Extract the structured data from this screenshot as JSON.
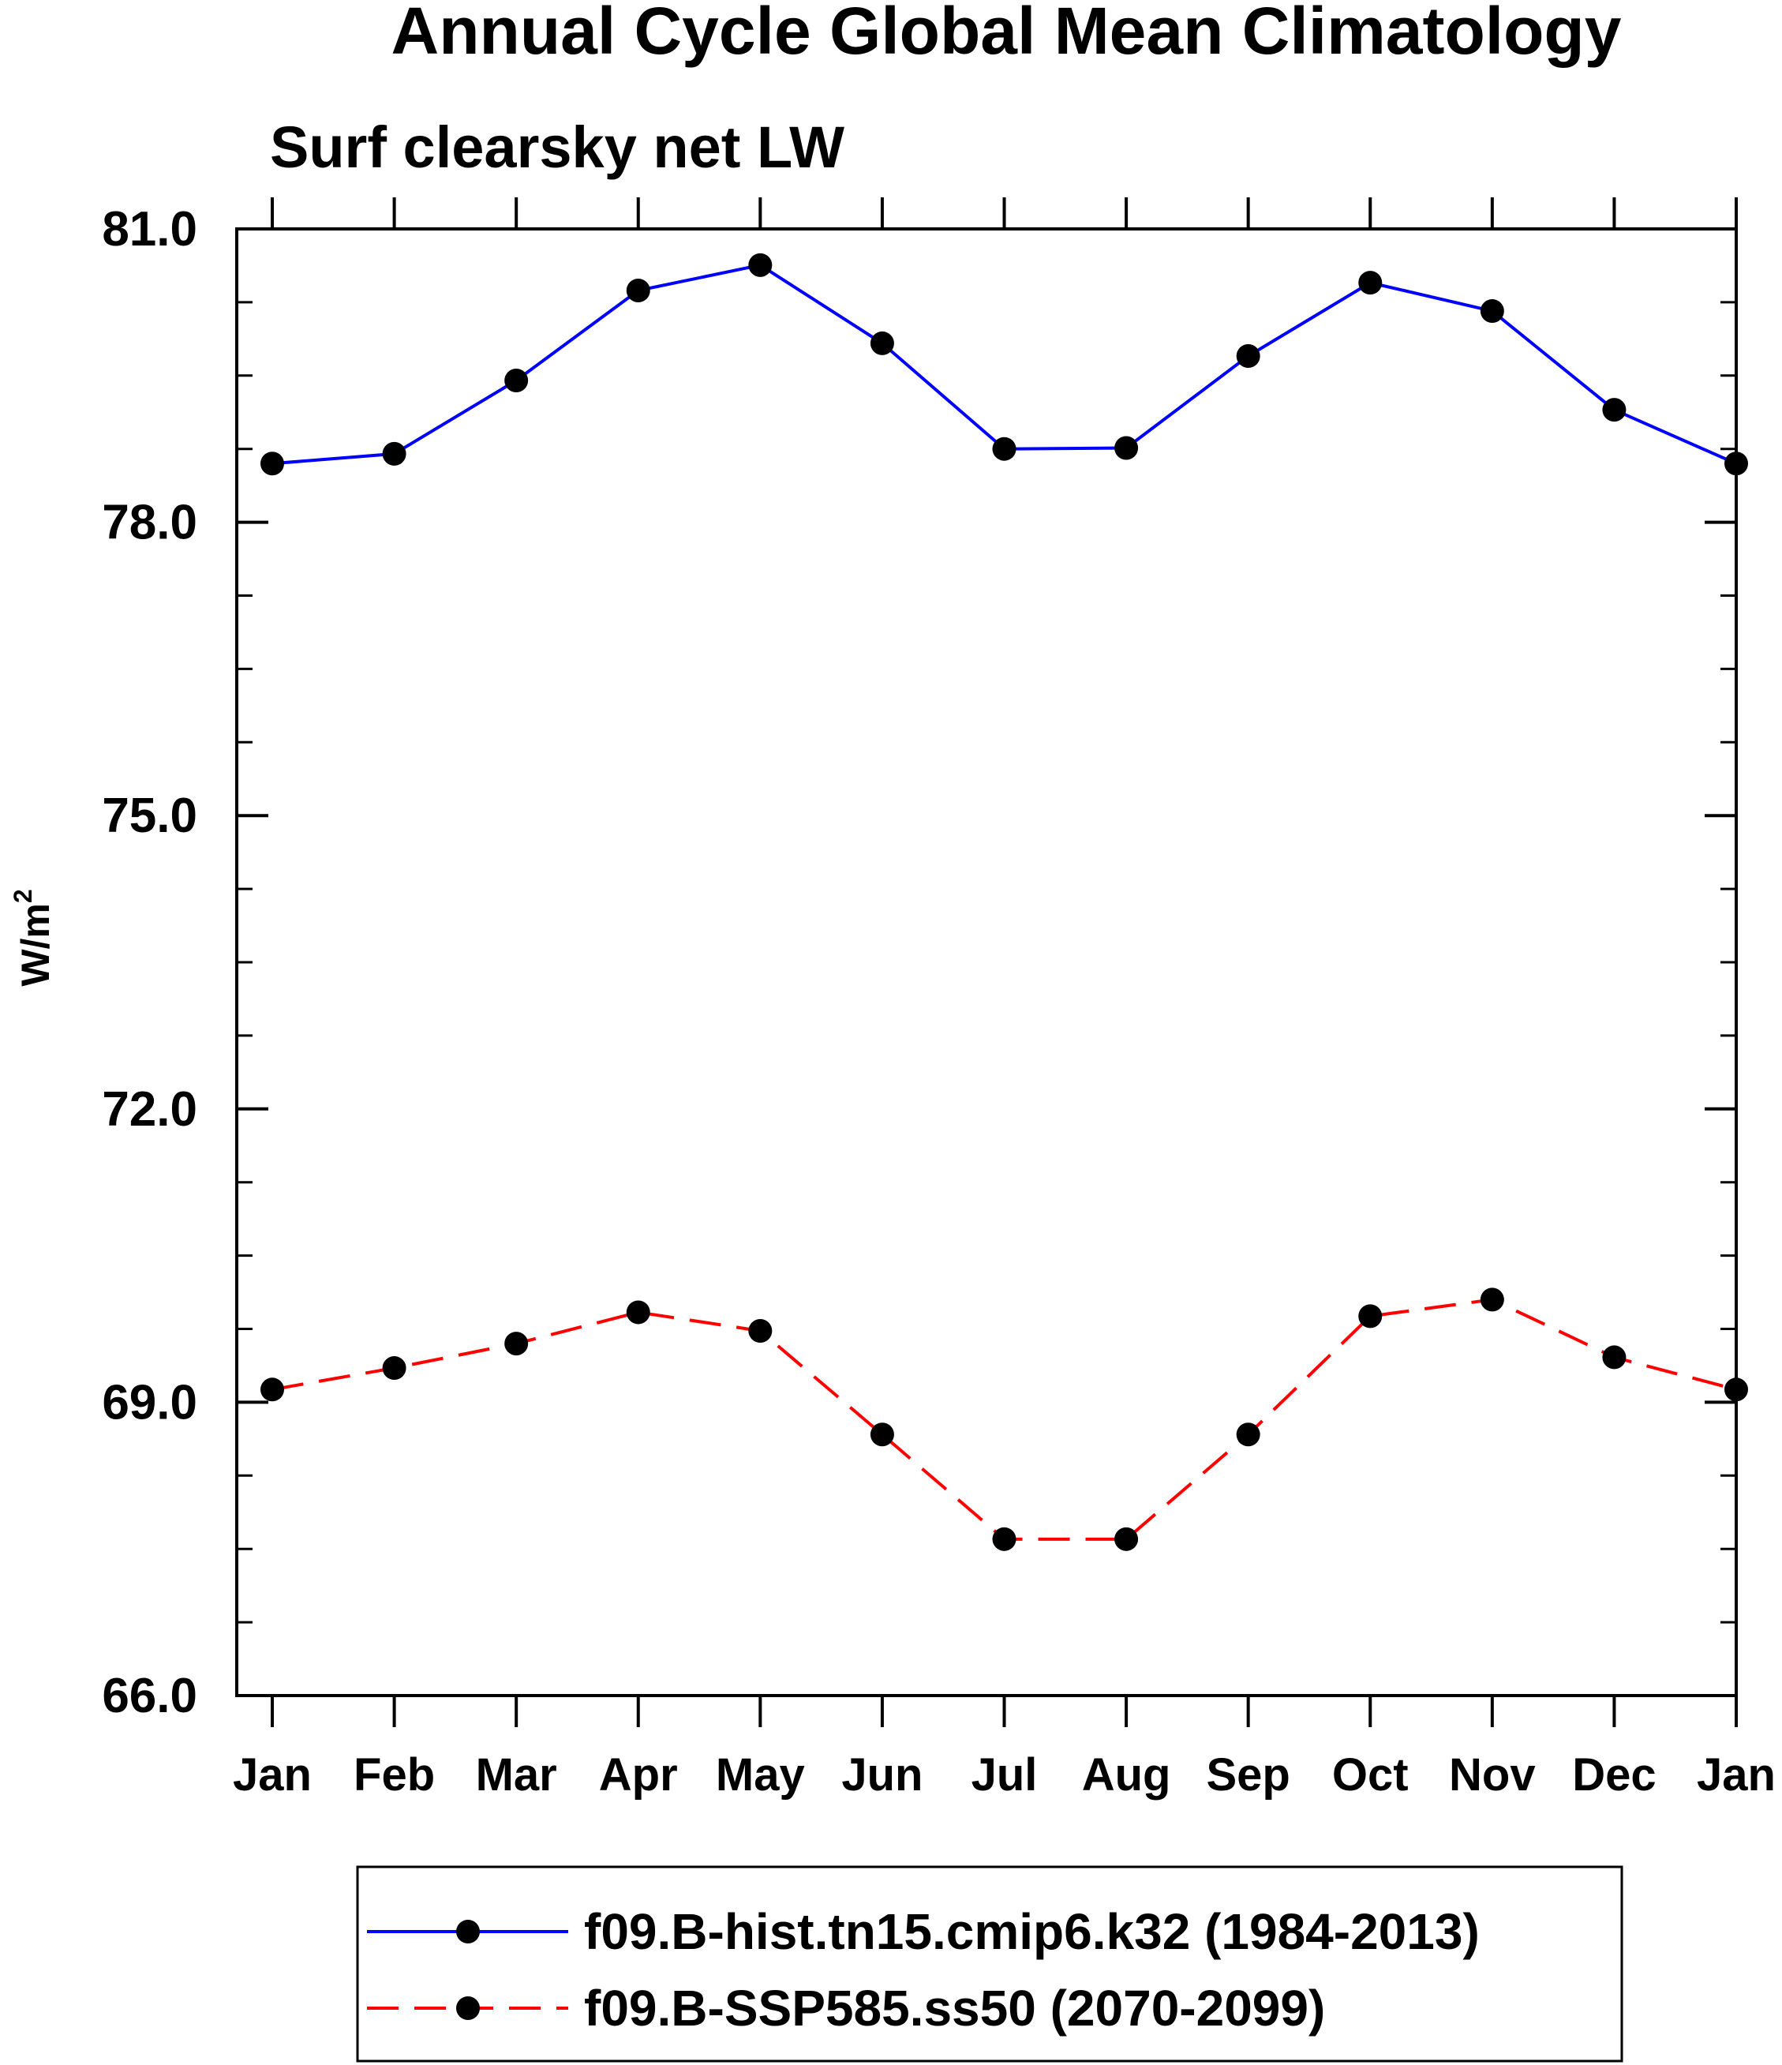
{
  "chart_data": {
    "type": "line",
    "title": "Annual Cycle Global Mean Climatology",
    "subtitle": "Surf clearsky net LW",
    "ylabel_base": "W/m",
    "ylabel_sup": "2",
    "categories": [
      "Jan",
      "Feb",
      "Mar",
      "Apr",
      "May",
      "Jun",
      "Jul",
      "Aug",
      "Sep",
      "Oct",
      "Nov",
      "Dec",
      "Jan"
    ],
    "ylim": [
      66.0,
      81.0
    ],
    "yticks": [
      66.0,
      69.0,
      72.0,
      75.0,
      78.0,
      81.0
    ],
    "ytick_labels": [
      "66.0",
      "69.0",
      "72.0",
      "75.0",
      "78.0",
      "81.0"
    ],
    "grid": false,
    "legend_position": "bottom",
    "series": [
      {
        "name": "f09.B-hist.tn15.cmip6.k32 (1984-2013)",
        "color": "#0000ff",
        "dash": "solid",
        "values": [
          78.6,
          78.7,
          79.45,
          80.37,
          80.63,
          79.83,
          78.75,
          78.76,
          79.7,
          80.45,
          80.16,
          79.15,
          78.6
        ]
      },
      {
        "name": "f09.B-SSP585.ss50 (2070-2099)",
        "color": "#ff0000",
        "dash": "dashed",
        "values": [
          69.13,
          69.35,
          69.6,
          69.92,
          69.73,
          68.67,
          67.6,
          67.6,
          68.67,
          69.88,
          70.05,
          69.46,
          69.13
        ]
      }
    ]
  }
}
